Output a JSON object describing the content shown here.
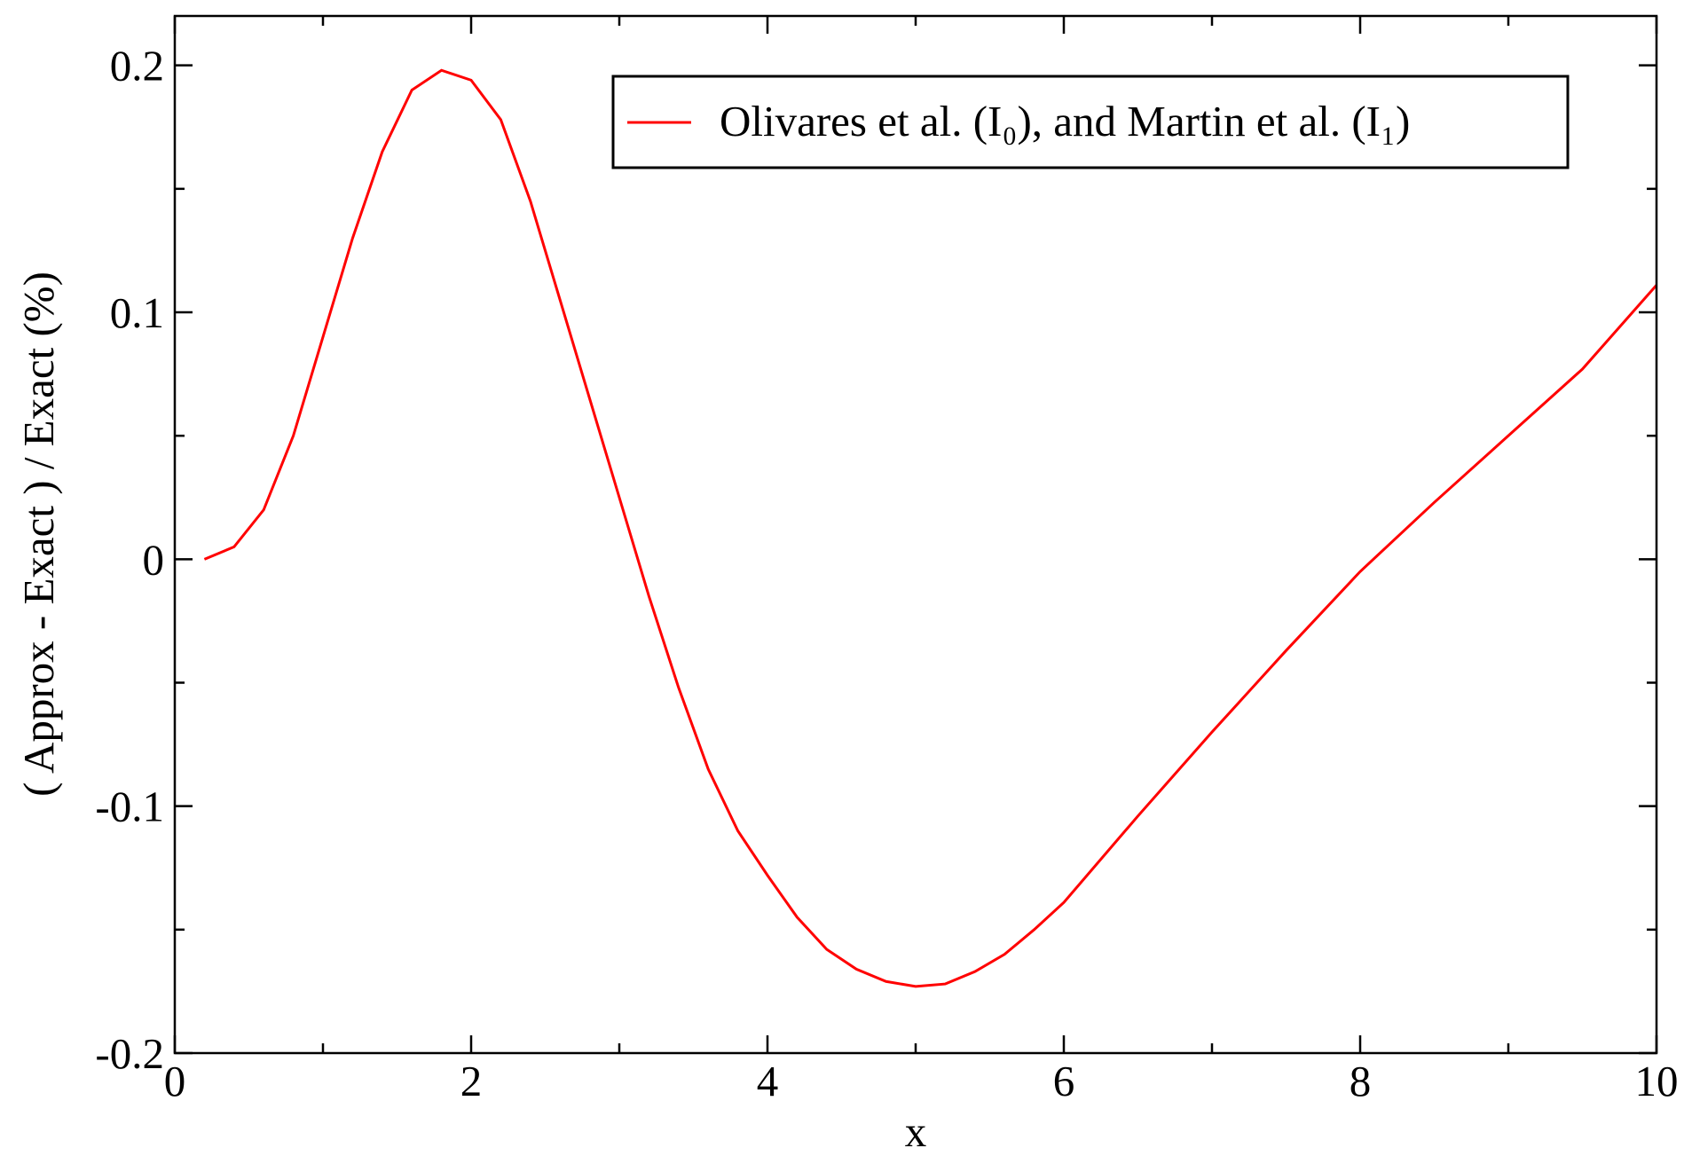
{
  "chart_data": {
    "type": "line",
    "xlabel": "x",
    "ylabel": "( Approx - Exact ) / Exact (%)",
    "x": [
      0.2,
      0.4,
      0.6,
      0.8,
      1.0,
      1.2,
      1.4,
      1.6,
      1.8,
      2.0,
      2.2,
      2.4,
      2.6,
      2.8,
      3.0,
      3.2,
      3.4,
      3.6,
      3.8,
      4.0,
      4.2,
      4.4,
      4.6,
      4.8,
      5.0,
      5.2,
      5.4,
      5.6,
      5.8,
      6.0,
      6.5,
      7.0,
      7.5,
      8.0,
      8.5,
      9.0,
      9.5,
      10.0
    ],
    "series": [
      {
        "name": "Olivares et al. (I₀), and Martin et al. (I₁)",
        "color": "#ff0000",
        "values": [
          0,
          0.005,
          0.02,
          0.05,
          0.09,
          0.13,
          0.165,
          0.19,
          0.198,
          0.194,
          0.178,
          0.145,
          0.105,
          0.065,
          0.025,
          -0.015,
          -0.052,
          -0.085,
          -0.11,
          -0.128,
          -0.145,
          -0.158,
          -0.166,
          -0.171,
          -0.173,
          -0.172,
          -0.167,
          -0.16,
          -0.15,
          -0.139,
          -0.104,
          -0.07,
          -0.037,
          -0.005,
          0.023,
          0.05,
          0.077,
          0.111
        ]
      }
    ],
    "xlim": [
      0,
      10
    ],
    "xticks": [
      0,
      2,
      4,
      6,
      8,
      10
    ],
    "xminorticks": [
      1,
      3,
      5,
      7,
      9
    ],
    "ylim": [
      -0.2,
      0.22
    ],
    "yticks": [
      -0.2,
      -0.1,
      0,
      0.1,
      0.2
    ],
    "yminorticks": [
      -0.15,
      -0.05,
      0.05,
      0.15
    ],
    "legend": "upper right"
  }
}
